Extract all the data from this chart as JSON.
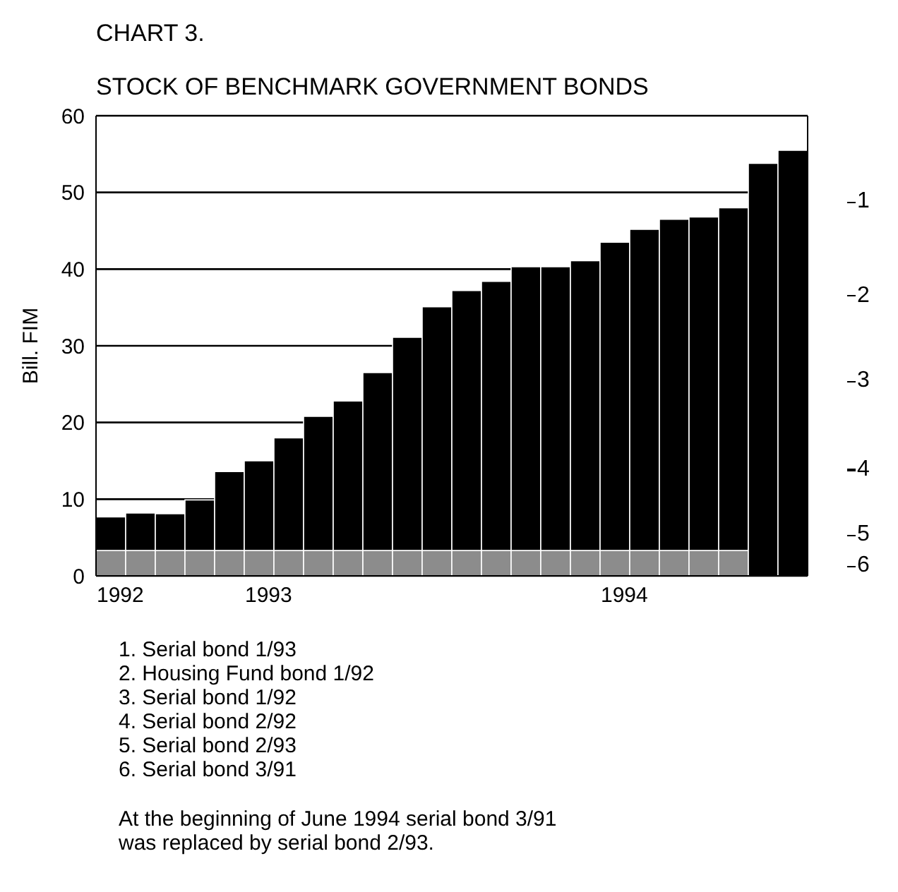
{
  "chart_data": {
    "type": "bar",
    "title": "CHART 3.",
    "subtitle": "STOCK OF BENCHMARK GOVERNMENT BONDS",
    "ylabel": "Bill. FIM",
    "categories": [
      "1992",
      null,
      null,
      null,
      null,
      "1993",
      null,
      null,
      null,
      null,
      null,
      null,
      null,
      null,
      null,
      null,
      null,
      "1994",
      null,
      null,
      null,
      null,
      null,
      null
    ],
    "stacked": true,
    "series": [
      {
        "color": "#8c8c8c",
        "values": [
          3.3,
          3.3,
          3.3,
          3.3,
          3.3,
          3.3,
          3.3,
          3.3,
          3.3,
          3.3,
          3.3,
          3.3,
          3.3,
          3.3,
          3.3,
          3.3,
          3.3,
          3.3,
          3.3,
          3.3,
          3.3,
          3.3,
          null,
          null
        ]
      },
      {
        "color": "#000000",
        "values": [
          4.4,
          4.9,
          4.8,
          6.6,
          10.3,
          11.7,
          14.7,
          17.5,
          19.5,
          23.2,
          27.8,
          31.8,
          33.9,
          35.1,
          37.0,
          37.0,
          37.8,
          40.2,
          41.9,
          43.2,
          43.5,
          44.7,
          53.8,
          55.5
        ]
      }
    ],
    "ylim": [
      0,
      60
    ],
    "yticks": [
      0,
      10,
      20,
      30,
      40,
      50,
      60
    ],
    "grid": "y",
    "annotations": [
      "1",
      "2",
      "3",
      "4",
      "5",
      "6",
      "1. Serial bond 1/93",
      "2. Housing Fund bond 1/92",
      "3. Serial bond 1/92",
      "4. Serial bond 2/92",
      "5. Serial bond 2/93",
      "6. Serial bond 3/91",
      "At the beginning of June 1994 serial bond 3/91 was replaced by serial bond 2/93."
    ]
  }
}
